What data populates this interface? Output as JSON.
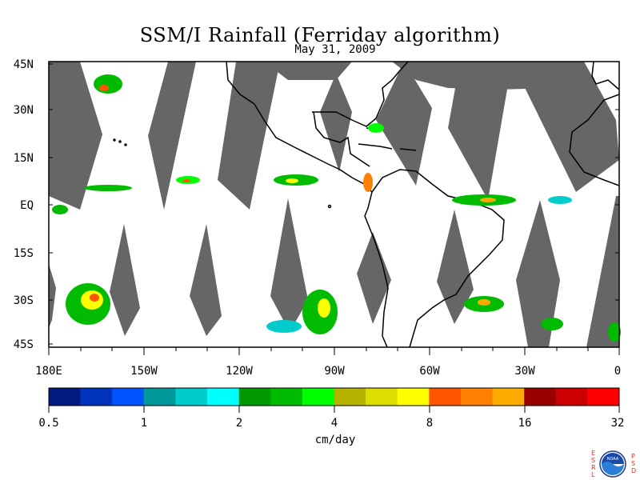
{
  "title": "SSM/I Rainfall (Ferriday algorithm)",
  "subtitle": "May 31, 2009",
  "lat_labels": [
    "45N",
    "30N",
    "15N",
    "EQ",
    "15S",
    "30S",
    "45S"
  ],
  "lon_labels": [
    "180E",
    "150W",
    "120W",
    "90W",
    "60W",
    "30W",
    "0"
  ],
  "colorbar": {
    "tick_labels": [
      "0.5",
      "1",
      "2",
      "4",
      "8",
      "16",
      "32"
    ],
    "unit": "cm/day",
    "colors": [
      "#001a80",
      "#0033bb",
      "#0055ff",
      "#009999",
      "#00cccc",
      "#00ffff",
      "#009900",
      "#00bb00",
      "#00ff00",
      "#b3b300",
      "#dddd00",
      "#ffff00",
      "#ff5500",
      "#ff8000",
      "#ffaa00",
      "#990000",
      "#cc0000",
      "#ff0000"
    ]
  },
  "colors": {
    "no_data_swath": "#666666",
    "coastline": "#000000",
    "background": "#ffffff"
  },
  "logo": {
    "left_letters": [
      "E",
      "S",
      "R",
      "L"
    ],
    "right_letters": [
      "P",
      "S",
      "D"
    ],
    "center": "NOAA"
  }
}
